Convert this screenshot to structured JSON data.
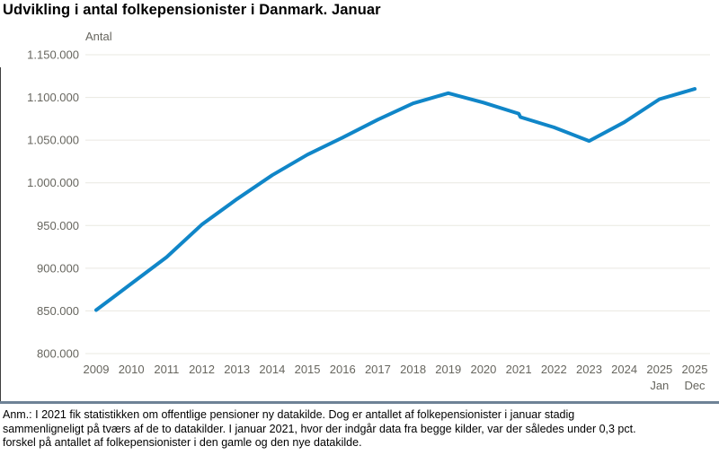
{
  "title": "Udvikling i antal folkepensionister i Danmark. Januar",
  "colors": {
    "line": "#1086c8",
    "grid": "#e9e8e1",
    "axis_text": "#67665f",
    "separator": "#6e8296",
    "title_text": "#000000"
  },
  "note": {
    "lines": [
      "Anm.: I 2021 fik statistikken om offentlige pensioner ny datakilde. Dog er antallet af folkepensionister i januar stadig",
      "sammenligneligt på tværs af de to datakilder. I januar 2021, hvor der indgår data fra begge kilder, var der således under 0,3 pct.",
      "forskel på antallet af folkepensionister i den gamle og den nye datakilde."
    ]
  },
  "chart_data": {
    "type": "line",
    "title": "Udvikling i antal folkepensionister i Danmark. Januar",
    "ylabel": "Antal",
    "xlabel": "",
    "ylim": [
      800000,
      1150000
    ],
    "grid": "horizontal-only",
    "legend": "none",
    "ytick_values": [
      1150000,
      1100000,
      1050000,
      1000000,
      950000,
      900000,
      850000,
      800000
    ],
    "ytick_labels": [
      "1.150.000",
      "1.100.000",
      "1.050.000",
      "1.000.000",
      "950.000",
      "900.000",
      "850.000",
      "800.000"
    ],
    "x_categories": [
      "2009",
      "2010",
      "2011",
      "2012",
      "2013",
      "2014",
      "2015",
      "2016",
      "2017",
      "2018",
      "2019",
      "2020",
      "2021",
      "2022",
      "2023",
      "2024",
      "2025 Jan",
      "2025 Dec"
    ],
    "x_ticks": [
      {
        "label": "2009",
        "sub": ""
      },
      {
        "label": "2010",
        "sub": ""
      },
      {
        "label": "2011",
        "sub": ""
      },
      {
        "label": "2012",
        "sub": ""
      },
      {
        "label": "2013",
        "sub": ""
      },
      {
        "label": "2014",
        "sub": ""
      },
      {
        "label": "2015",
        "sub": ""
      },
      {
        "label": "2016",
        "sub": ""
      },
      {
        "label": "2017",
        "sub": ""
      },
      {
        "label": "2018",
        "sub": ""
      },
      {
        "label": "2019",
        "sub": ""
      },
      {
        "label": "2020",
        "sub": ""
      },
      {
        "label": "2021",
        "sub": ""
      },
      {
        "label": "2022",
        "sub": ""
      },
      {
        "label": "2023",
        "sub": ""
      },
      {
        "label": "2024",
        "sub": ""
      },
      {
        "label": "2025",
        "sub": "Jan"
      },
      {
        "label": "2025",
        "sub": "Dec"
      }
    ],
    "series": [
      {
        "name": "Antal folkepensionister",
        "color": "#1086c8",
        "values": [
          851000,
          882000,
          913000,
          951000,
          981000,
          1009000,
          1033000,
          1053000,
          1074000,
          1093000,
          1105000,
          1094000,
          1081000,
          1065000,
          1049000,
          1071000,
          1098000,
          1110000
        ],
        "source_break": {
          "index": 12,
          "value_after": 1077000
        }
      }
    ]
  }
}
